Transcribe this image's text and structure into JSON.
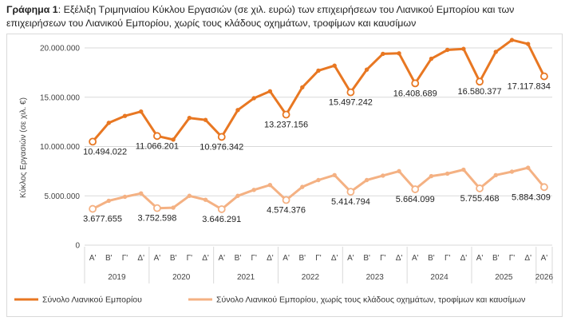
{
  "caption": {
    "bold": "Γράφημα 1",
    "text": ": Εξέλιξη Τριμηνιαίου Κύκλου Εργασιών (σε χιλ. ευρώ) των επιχειρήσεων του Λιανικού Εμπορίου και των επιχειρήσεων του Λιανικού Εμπορίου, χωρίς τους κλάδους οχημάτων, τροφίμων και καυσίμων"
  },
  "colors": {
    "total": "#E87722",
    "excl": "#F4B183",
    "grid": "#d9d9d9"
  },
  "chart_data": {
    "type": "line",
    "title": "",
    "xlabel": "",
    "ylabel": "Κύκλος Εργασιών (σε χιλ. €)",
    "ylim": [
      0,
      20000000
    ],
    "yticks": [
      "0",
      "5.000.000",
      "10.000.000",
      "15.000.000",
      "20.000.000"
    ],
    "grid": "horizontal",
    "legend_position": "bottom",
    "quarters": [
      "Α'",
      "Β'",
      "Γ'",
      "Δ'",
      "Α'",
      "Β'",
      "Γ'",
      "Δ'",
      "Α'",
      "Β'",
      "Γ'",
      "Δ'",
      "Α'",
      "Β'",
      "Γ'",
      "Δ'",
      "Α'",
      "Β'",
      "Γ'",
      "Δ'",
      "Α'",
      "Β'",
      "Γ'",
      "Δ'",
      "Α'",
      "Β'",
      "Γ'",
      "Δ'",
      "Α'"
    ],
    "years": [
      "2019",
      "2020",
      "2021",
      "2022",
      "2023",
      "2024",
      "2025",
      "2026"
    ],
    "series": [
      {
        "name": "Σύνολο Λιανικού Εμπορίου",
        "values": [
          10494022,
          12400000,
          13100000,
          13550000,
          11066201,
          10700000,
          12900000,
          12700000,
          10976342,
          13700000,
          14900000,
          15600000,
          13237156,
          16000000,
          17700000,
          18200000,
          15497242,
          17800000,
          19400000,
          19450000,
          16408689,
          18900000,
          19800000,
          19900000,
          16580377,
          19600000,
          20800000,
          20400000,
          17117834
        ],
        "labels": [
          {
            "i": 0,
            "text": "10.494.022"
          },
          {
            "i": 4,
            "text": "11.066.201"
          },
          {
            "i": 8,
            "text": "10.976.342"
          },
          {
            "i": 12,
            "text": "13.237.156"
          },
          {
            "i": 16,
            "text": "15.497.242"
          },
          {
            "i": 20,
            "text": "16.408.689"
          },
          {
            "i": 24,
            "text": "16.580.377"
          },
          {
            "i": 28,
            "text": "17.117.834"
          }
        ]
      },
      {
        "name": "Σύνολο Λιανικού Εμπορίου, χωρίς τους κλάδους οχημάτων, τροφίμων και καυσίμων",
        "values": [
          3677655,
          4500000,
          4900000,
          5250000,
          3752598,
          3800000,
          5000000,
          4600000,
          3646291,
          5000000,
          5600000,
          6100000,
          4574376,
          5900000,
          6600000,
          7100000,
          5414794,
          6600000,
          7050000,
          7500000,
          5664099,
          7000000,
          7250000,
          7650000,
          5755468,
          7100000,
          7450000,
          7850000,
          5884309
        ],
        "labels": [
          {
            "i": 0,
            "text": "3.677.655"
          },
          {
            "i": 4,
            "text": "3.752.598"
          },
          {
            "i": 8,
            "text": "3.646.291"
          },
          {
            "i": 12,
            "text": "4.574.376"
          },
          {
            "i": 16,
            "text": "5.414.794"
          },
          {
            "i": 20,
            "text": "5.664.099"
          },
          {
            "i": 24,
            "text": "5.755.468"
          },
          {
            "i": 28,
            "text": "5.884.309"
          }
        ]
      }
    ]
  }
}
